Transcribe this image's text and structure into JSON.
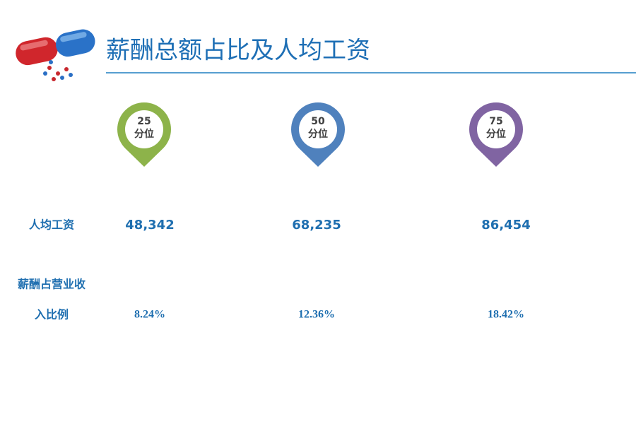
{
  "header": {
    "title": "薪酬总额占比及人均工资"
  },
  "pins": [
    {
      "number": "25",
      "label": "分位",
      "color": "#8db34a"
    },
    {
      "number": "50",
      "label": "分位",
      "color": "#4f81bd"
    },
    {
      "number": "75",
      "label": "分位",
      "color": "#8064a2"
    }
  ],
  "table": {
    "rows": [
      {
        "label": [
          "人均工资"
        ],
        "values": [
          "48,342",
          "68,235",
          "86,454"
        ]
      },
      {
        "label": [
          "薪酬占营业收",
          "入比例"
        ],
        "values": [
          "8.24%",
          "12.36%",
          "18.42%"
        ]
      }
    ]
  }
}
